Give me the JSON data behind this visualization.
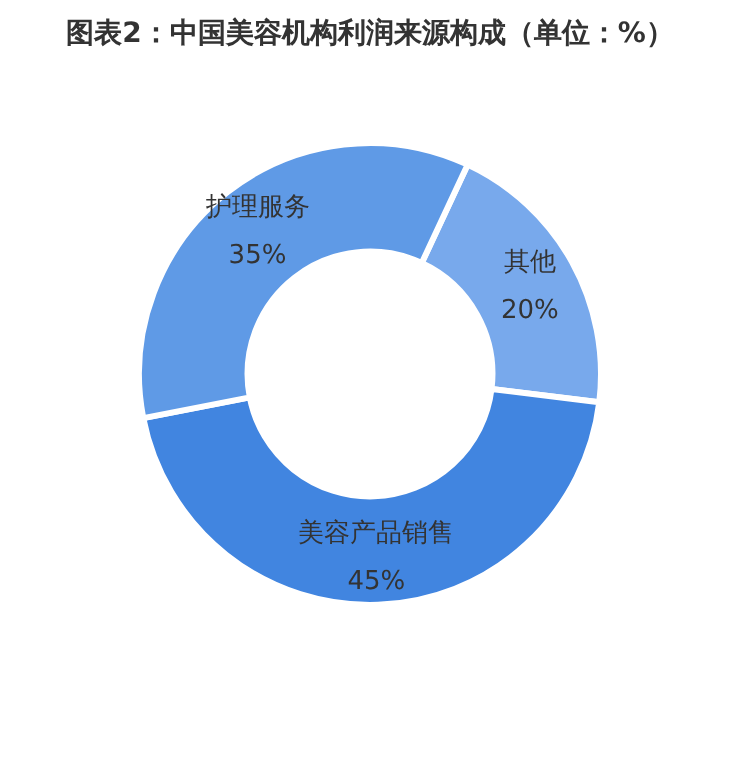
{
  "chart_data": {
    "type": "donut",
    "title": "图表2：中国美容机构利润来源构成（单位：%）",
    "categories": [
      "其他",
      "美容产品销售",
      "护理服务"
    ],
    "values": [
      20,
      45,
      35
    ],
    "colors": [
      "#78a9ec",
      "#4185e0",
      "#5f9ae6"
    ],
    "value_labels": [
      "20%",
      "45%",
      "35%"
    ],
    "legend": false
  }
}
